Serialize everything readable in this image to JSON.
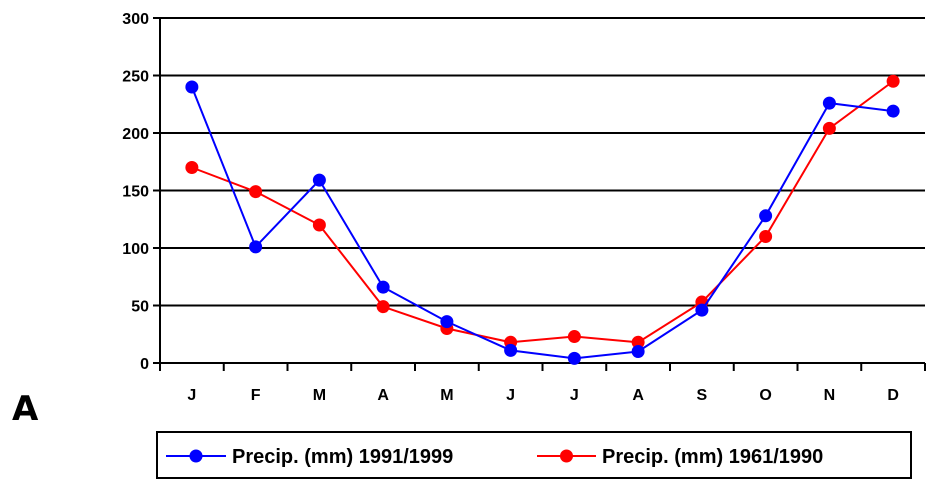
{
  "panel_label": "A",
  "chart_data": {
    "type": "line",
    "title": "",
    "xlabel": "",
    "ylabel": "",
    "categories": [
      "J",
      "F",
      "M",
      "A",
      "M",
      "J",
      "J",
      "A",
      "S",
      "O",
      "N",
      "D"
    ],
    "ylim": [
      0,
      300
    ],
    "yticks": [
      0,
      50,
      100,
      150,
      200,
      250,
      300
    ],
    "grid": "horizontal",
    "legend_position": "bottom",
    "series": [
      {
        "name": "Precip. (mm) 1991/1999",
        "color": "#0000ff",
        "values": [
          240,
          101,
          159,
          66,
          36,
          11,
          4,
          10,
          46,
          128,
          226,
          219
        ]
      },
      {
        "name": "Precip. (mm) 1961/1990",
        "color": "#ff0000",
        "values": [
          170,
          149,
          120,
          49,
          30,
          18,
          23,
          18,
          53,
          110,
          204,
          245
        ]
      }
    ]
  }
}
